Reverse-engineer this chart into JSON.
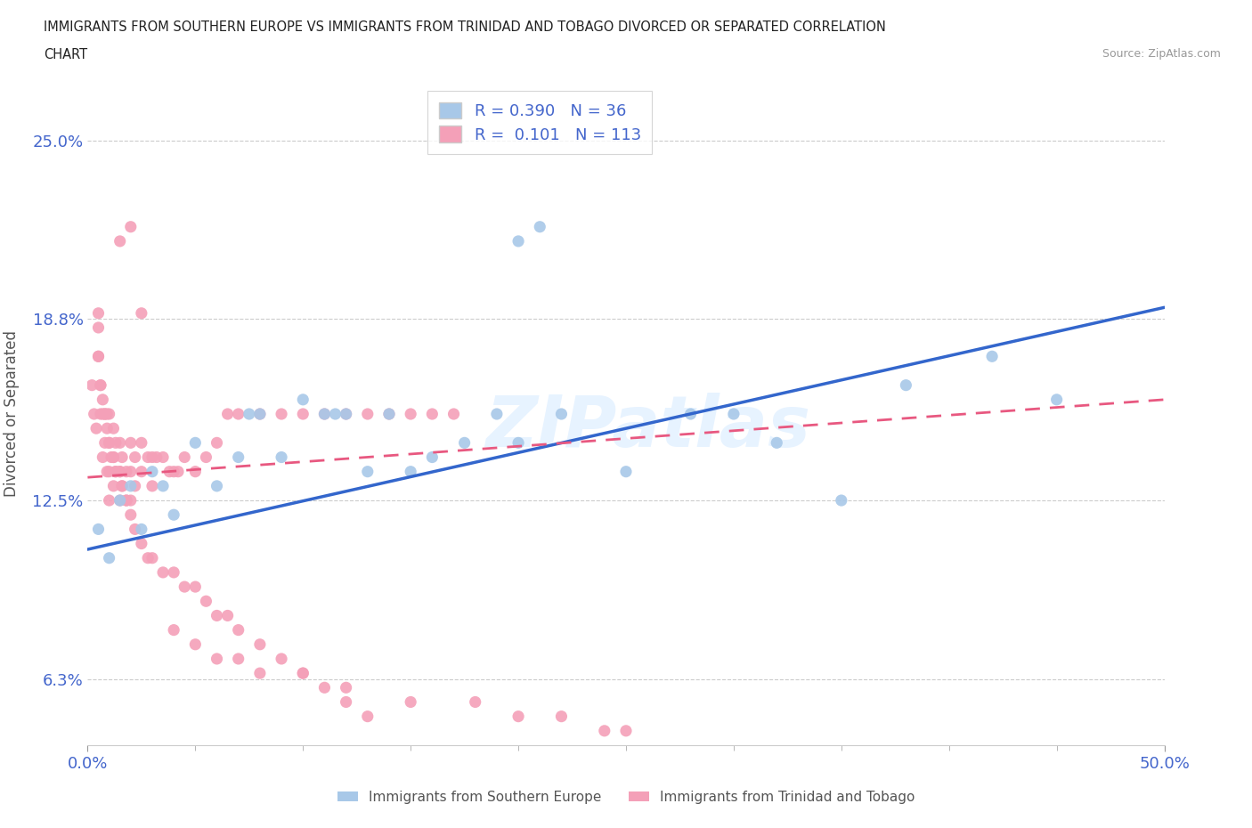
{
  "title_line1": "IMMIGRANTS FROM SOUTHERN EUROPE VS IMMIGRANTS FROM TRINIDAD AND TOBAGO DIVORCED OR SEPARATED CORRELATION",
  "title_line2": "CHART",
  "source": "Source: ZipAtlas.com",
  "ylabel": "Divorced or Separated",
  "xlim": [
    0.0,
    0.5
  ],
  "ylim": [
    0.04,
    0.27
  ],
  "xticks": [
    0.0,
    0.5
  ],
  "xticklabels": [
    "0.0%",
    "50.0%"
  ],
  "yticks": [
    0.063,
    0.125,
    0.188,
    0.25
  ],
  "yticklabels": [
    "6.3%",
    "12.5%",
    "18.8%",
    "25.0%"
  ],
  "blue_color": "#a8c8e8",
  "pink_color": "#f4a0b8",
  "blue_line_color": "#3366cc",
  "pink_line_color": "#e85880",
  "legend_R1": "0.390",
  "legend_N1": "36",
  "legend_R2": "0.101",
  "legend_N2": "113",
  "legend_label1": "Immigrants from Southern Europe",
  "legend_label2": "Immigrants from Trinidad and Tobago",
  "watermark": "ZIPatlas",
  "blue_trend_x0": 0.0,
  "blue_trend_y0": 0.108,
  "blue_trend_x1": 0.5,
  "blue_trend_y1": 0.192,
  "pink_trend_x0": 0.0,
  "pink_trend_y0": 0.133,
  "pink_trend_x1": 0.5,
  "pink_trend_y1": 0.16,
  "blue_scatter_x": [
    0.005,
    0.01,
    0.015,
    0.02,
    0.025,
    0.03,
    0.035,
    0.04,
    0.05,
    0.06,
    0.07,
    0.075,
    0.08,
    0.09,
    0.1,
    0.11,
    0.115,
    0.12,
    0.13,
    0.14,
    0.15,
    0.16,
    0.175,
    0.19,
    0.2,
    0.22,
    0.25,
    0.28,
    0.3,
    0.32,
    0.35,
    0.38,
    0.42,
    0.45,
    0.2,
    0.21
  ],
  "blue_scatter_y": [
    0.115,
    0.105,
    0.125,
    0.13,
    0.115,
    0.135,
    0.13,
    0.12,
    0.145,
    0.13,
    0.14,
    0.155,
    0.155,
    0.14,
    0.16,
    0.155,
    0.155,
    0.155,
    0.135,
    0.155,
    0.135,
    0.14,
    0.145,
    0.155,
    0.145,
    0.155,
    0.135,
    0.155,
    0.155,
    0.145,
    0.125,
    0.165,
    0.175,
    0.16,
    0.215,
    0.22
  ],
  "pink_scatter_x": [
    0.002,
    0.003,
    0.004,
    0.005,
    0.005,
    0.005,
    0.006,
    0.006,
    0.007,
    0.007,
    0.008,
    0.008,
    0.009,
    0.009,
    0.01,
    0.01,
    0.01,
    0.01,
    0.012,
    0.012,
    0.012,
    0.013,
    0.013,
    0.015,
    0.015,
    0.015,
    0.016,
    0.016,
    0.018,
    0.018,
    0.02,
    0.02,
    0.02,
    0.022,
    0.022,
    0.025,
    0.025,
    0.028,
    0.03,
    0.03,
    0.032,
    0.035,
    0.038,
    0.04,
    0.042,
    0.045,
    0.05,
    0.055,
    0.06,
    0.065,
    0.07,
    0.08,
    0.09,
    0.1,
    0.11,
    0.12,
    0.13,
    0.14,
    0.15,
    0.16,
    0.17,
    0.04,
    0.05,
    0.06,
    0.07,
    0.08,
    0.1,
    0.12,
    0.15,
    0.18,
    0.2,
    0.22,
    0.24,
    0.25,
    0.005,
    0.006,
    0.007,
    0.008,
    0.009,
    0.01,
    0.011,
    0.012,
    0.013,
    0.015,
    0.016,
    0.018,
    0.02,
    0.022,
    0.025,
    0.028,
    0.03,
    0.035,
    0.04,
    0.045,
    0.05,
    0.055,
    0.06,
    0.065,
    0.07,
    0.08,
    0.09,
    0.1,
    0.11,
    0.12,
    0.13,
    0.015,
    0.02,
    0.025
  ],
  "pink_scatter_y": [
    0.165,
    0.155,
    0.15,
    0.19,
    0.175,
    0.185,
    0.165,
    0.155,
    0.16,
    0.14,
    0.155,
    0.145,
    0.155,
    0.135,
    0.155,
    0.145,
    0.135,
    0.125,
    0.15,
    0.14,
    0.13,
    0.145,
    0.135,
    0.145,
    0.135,
    0.125,
    0.14,
    0.13,
    0.135,
    0.125,
    0.145,
    0.135,
    0.125,
    0.14,
    0.13,
    0.145,
    0.135,
    0.14,
    0.14,
    0.13,
    0.14,
    0.14,
    0.135,
    0.135,
    0.135,
    0.14,
    0.135,
    0.14,
    0.145,
    0.155,
    0.155,
    0.155,
    0.155,
    0.155,
    0.155,
    0.155,
    0.155,
    0.155,
    0.155,
    0.155,
    0.155,
    0.08,
    0.075,
    0.07,
    0.07,
    0.065,
    0.065,
    0.06,
    0.055,
    0.055,
    0.05,
    0.05,
    0.045,
    0.045,
    0.175,
    0.165,
    0.155,
    0.155,
    0.15,
    0.145,
    0.14,
    0.14,
    0.135,
    0.135,
    0.13,
    0.125,
    0.12,
    0.115,
    0.11,
    0.105,
    0.105,
    0.1,
    0.1,
    0.095,
    0.095,
    0.09,
    0.085,
    0.085,
    0.08,
    0.075,
    0.07,
    0.065,
    0.06,
    0.055,
    0.05,
    0.215,
    0.22,
    0.19
  ]
}
